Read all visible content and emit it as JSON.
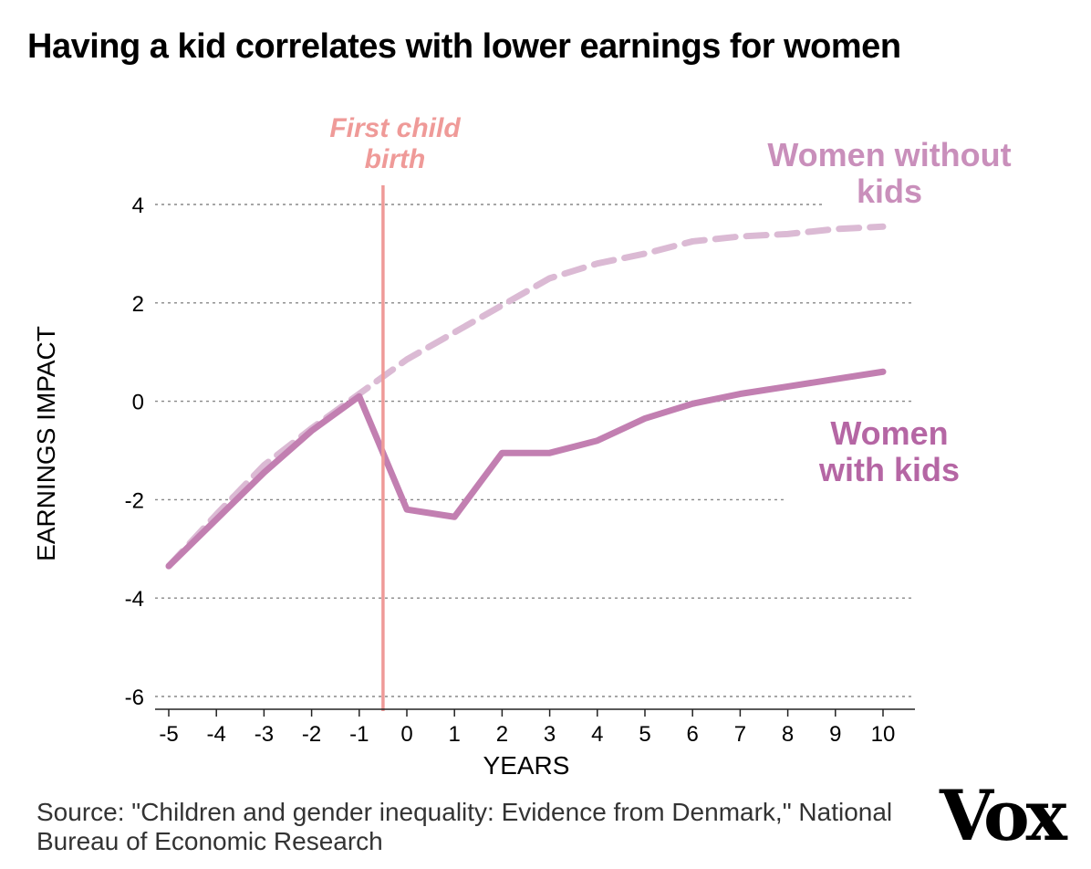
{
  "title": "Having a kid correlates with lower earnings for women",
  "source": "Source: \"Children and gender inequality: Evidence from Denmark,\" National Bureau of Economic Research",
  "logo": "Vox",
  "colors": {
    "with_kids": "#c27fb1",
    "without_kids": "#dbbad4",
    "birth_line": "#ef9a98",
    "grid": "#888888",
    "with_kids_label": "#b566a4",
    "without_kids_label": "#c98fbb"
  },
  "chart_data": {
    "type": "line",
    "title": "Having a kid correlates with lower earnings for women",
    "xlabel": "YEARS",
    "ylabel": "EARNINGS IMPACT",
    "xlim": [
      -5,
      10
    ],
    "ylim": [
      -6,
      4
    ],
    "xticks": [
      "-5",
      "-4",
      "-3",
      "-2",
      "-1",
      "0",
      "1",
      "2",
      "3",
      "4",
      "5",
      "6",
      "7",
      "8",
      "9",
      "10"
    ],
    "yticks": [
      "4",
      "2",
      "0",
      "-2",
      "-4",
      "-6"
    ],
    "grid": true,
    "series": [
      {
        "name": "Women without kids",
        "style": "dashed",
        "x": [
          -5,
          -4,
          -3,
          -2,
          -1,
          0,
          1,
          2,
          3,
          4,
          5,
          6,
          7,
          8,
          9,
          10
        ],
        "y": [
          -3.35,
          -2.3,
          -1.3,
          -0.55,
          0.15,
          0.85,
          1.4,
          1.95,
          2.5,
          2.8,
          3.0,
          3.25,
          3.35,
          3.4,
          3.5,
          3.55
        ]
      },
      {
        "name": "Women with kids",
        "style": "solid",
        "x": [
          -5,
          -4,
          -3,
          -2,
          -1,
          0,
          1,
          2,
          3,
          4,
          5,
          6,
          7,
          8,
          9,
          10
        ],
        "y": [
          -3.35,
          -2.4,
          -1.45,
          -0.6,
          0.1,
          -2.2,
          -2.35,
          -1.05,
          -1.05,
          -0.8,
          -0.35,
          -0.05,
          0.15,
          0.3,
          0.45,
          0.6
        ]
      }
    ],
    "annotations": [
      {
        "text_lines": [
          "First child",
          "birth"
        ],
        "x": -0.5
      },
      {
        "text_lines": [
          "Women without",
          "kids"
        ],
        "series": "Women without kids"
      },
      {
        "text_lines": [
          "Women",
          "with kids"
        ],
        "series": "Women with kids"
      }
    ]
  }
}
